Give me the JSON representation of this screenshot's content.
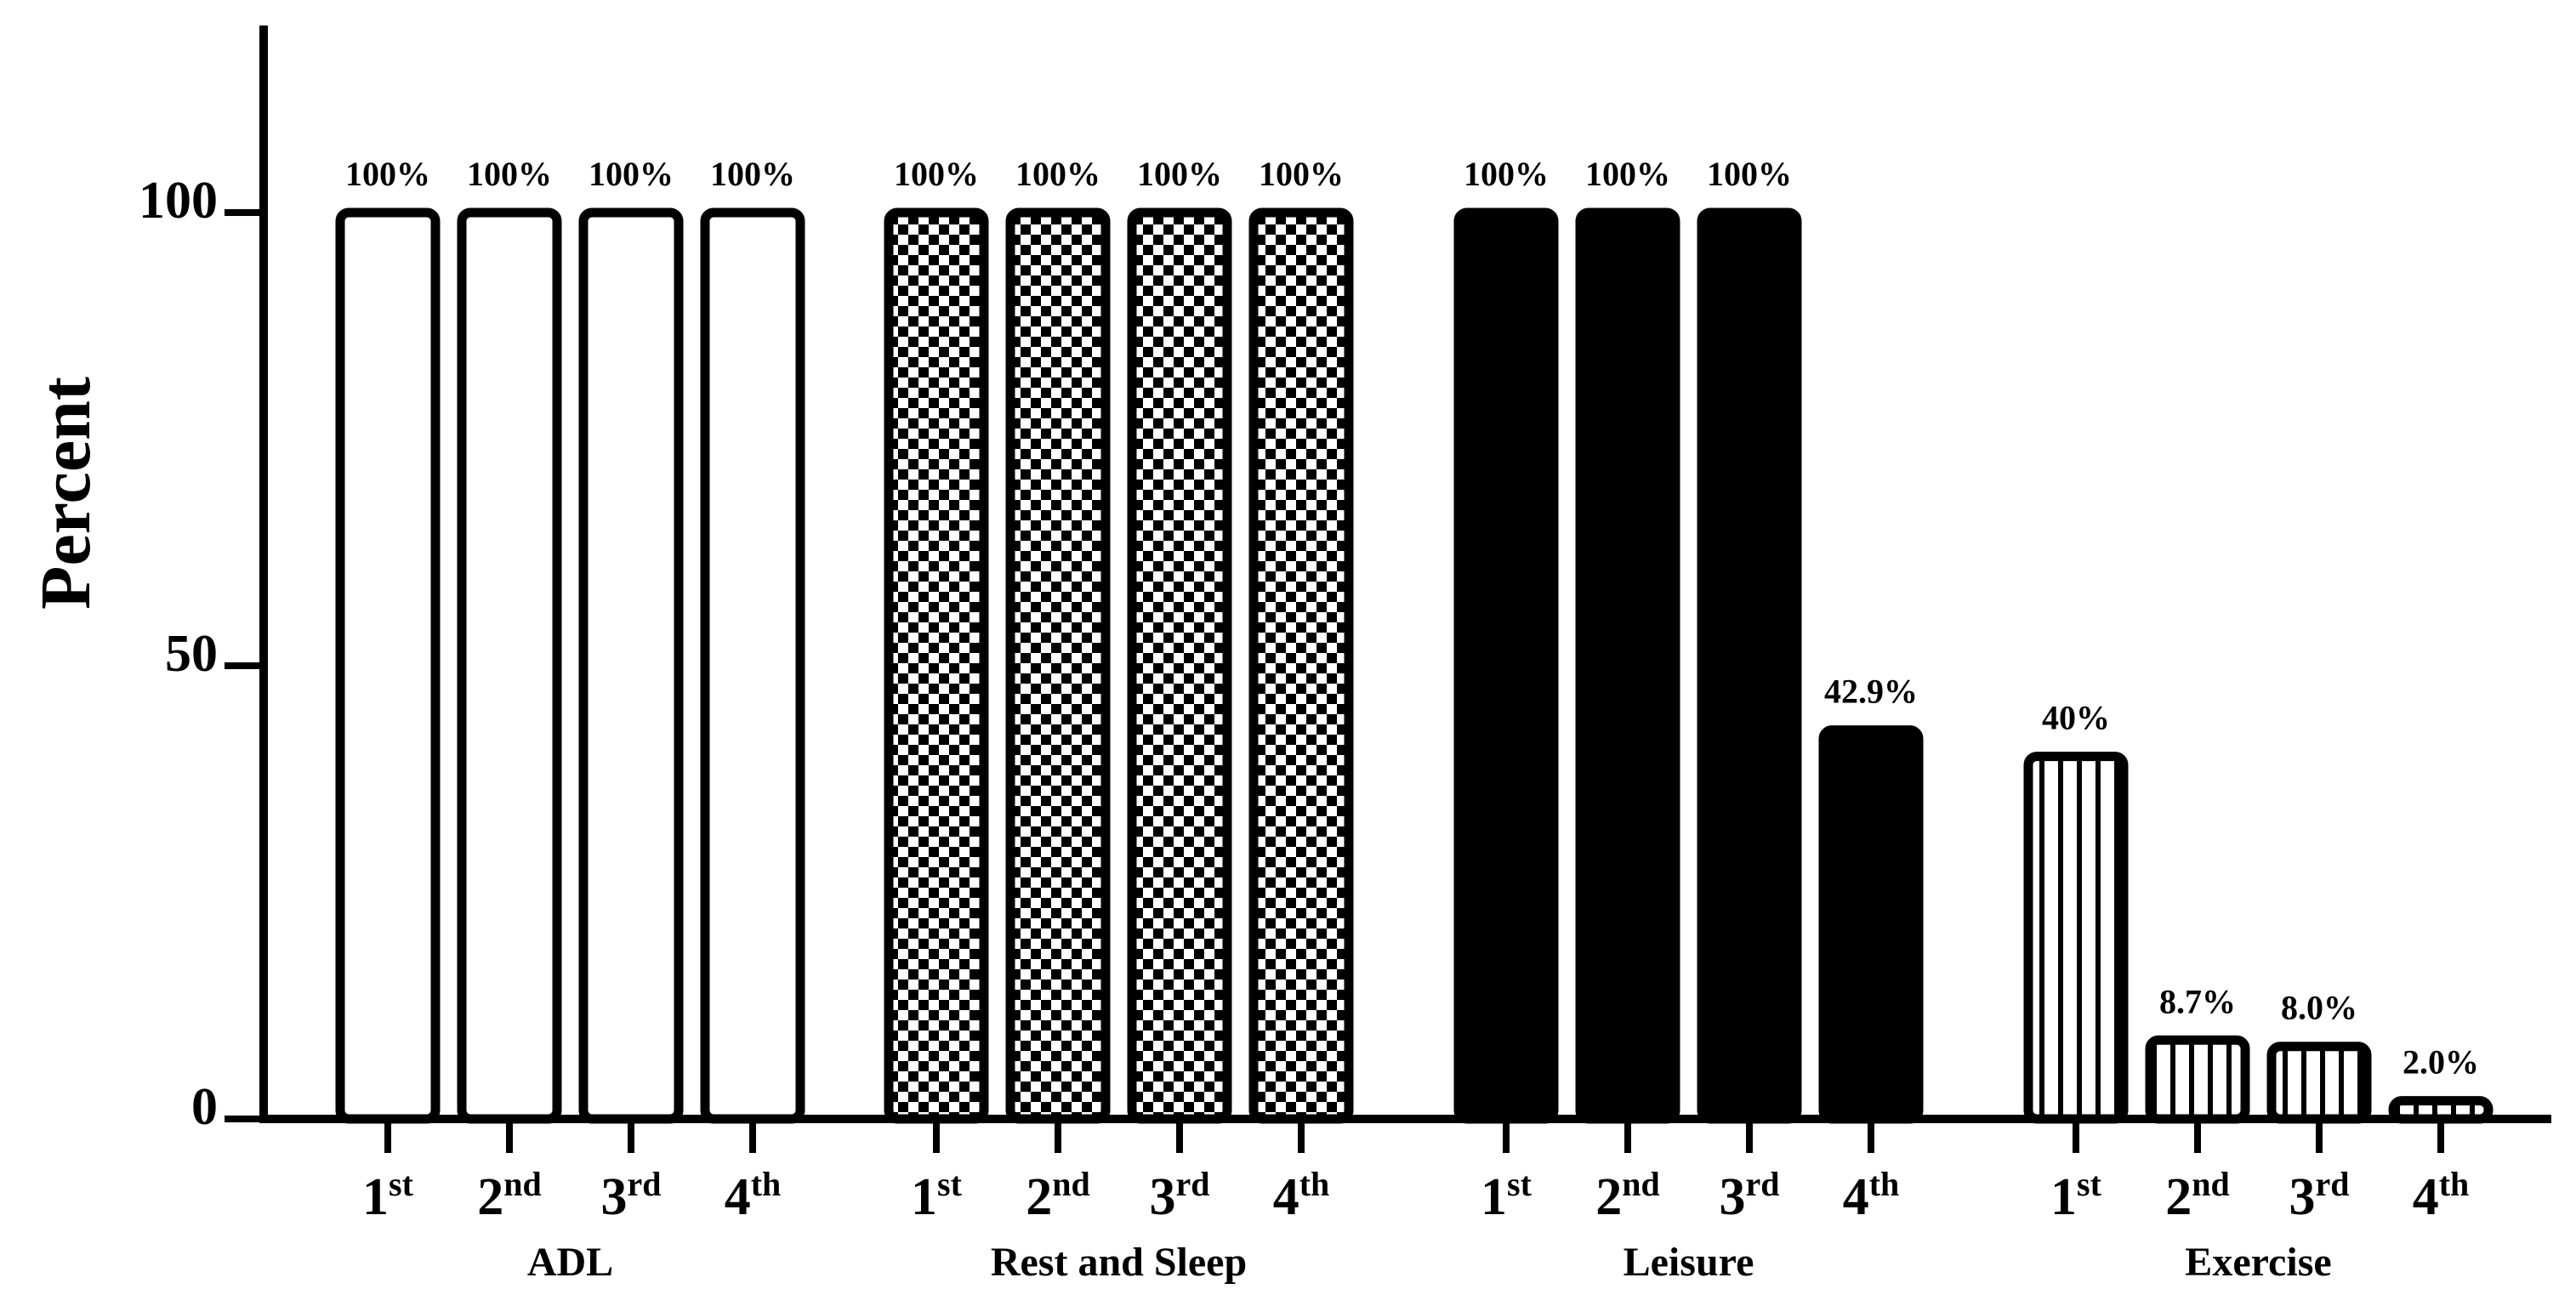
{
  "chart_data": {
    "type": "bar",
    "ylabel": "Percent",
    "xlabel": "",
    "ylim": [
      0,
      120
    ],
    "yticks": [
      0,
      50,
      100
    ],
    "grid": false,
    "groups": [
      {
        "name": "ADL",
        "pattern": "white",
        "bars": [
          {
            "num": "1",
            "sup": "st",
            "value": 100,
            "label": "100%"
          },
          {
            "num": "2",
            "sup": "nd",
            "value": 100,
            "label": "100%"
          },
          {
            "num": "3",
            "sup": "rd",
            "value": 100,
            "label": "100%"
          },
          {
            "num": "4",
            "sup": "th",
            "value": 100,
            "label": "100%"
          }
        ]
      },
      {
        "name": "Rest and Sleep",
        "pattern": "checker",
        "bars": [
          {
            "num": "1",
            "sup": "st",
            "value": 100,
            "label": "100%"
          },
          {
            "num": "2",
            "sup": "nd",
            "value": 100,
            "label": "100%"
          },
          {
            "num": "3",
            "sup": "rd",
            "value": 100,
            "label": "100%"
          },
          {
            "num": "4",
            "sup": "th",
            "value": 100,
            "label": "100%"
          }
        ]
      },
      {
        "name": "Leisure",
        "pattern": "solid",
        "bars": [
          {
            "num": "1",
            "sup": "st",
            "value": 100,
            "label": "100%"
          },
          {
            "num": "2",
            "sup": "nd",
            "value": 100,
            "label": "100%"
          },
          {
            "num": "3",
            "sup": "rd",
            "value": 100,
            "label": "100%"
          },
          {
            "num": "4",
            "sup": "th",
            "value": 42.9,
            "label": "42.9%"
          }
        ]
      },
      {
        "name": "Exercise",
        "pattern": "vstripes",
        "bars": [
          {
            "num": "1",
            "sup": "st",
            "value": 40,
            "label": "40%"
          },
          {
            "num": "2",
            "sup": "nd",
            "value": 8.7,
            "label": "8.7%"
          },
          {
            "num": "3",
            "sup": "rd",
            "value": 8.0,
            "label": "8.0%"
          },
          {
            "num": "4",
            "sup": "th",
            "value": 2.0,
            "label": "2.0%"
          }
        ]
      }
    ],
    "colors": {
      "ink": "#000000",
      "fill_light": "#ffffff"
    }
  }
}
